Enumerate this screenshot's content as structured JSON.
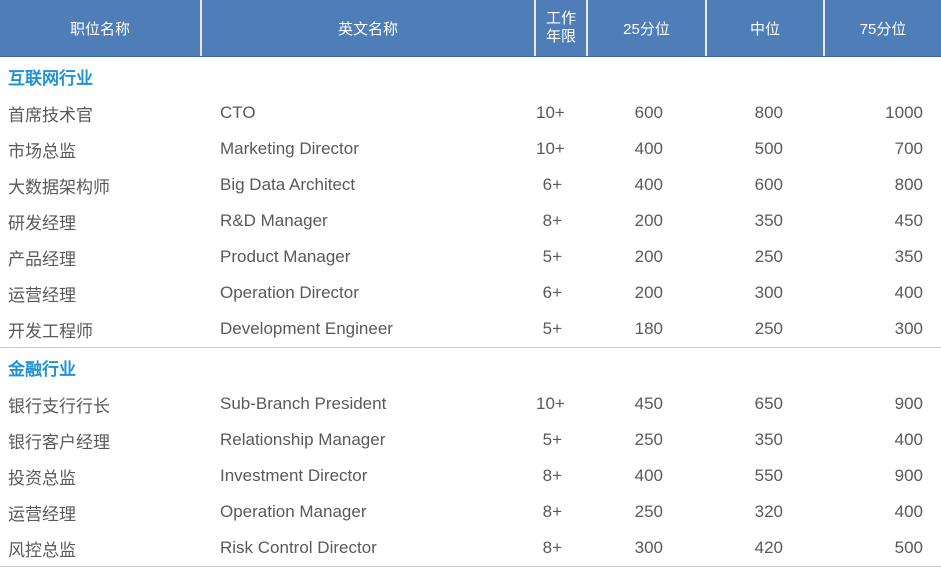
{
  "table": {
    "columns": [
      {
        "label": "职位名称"
      },
      {
        "label": "英文名称"
      },
      {
        "label_lines": [
          "工作",
          "年限"
        ]
      },
      {
        "label": "25分位"
      },
      {
        "label": "中位"
      },
      {
        "label": "75分位"
      }
    ],
    "sections": [
      {
        "name": "互联网行业",
        "rows": [
          [
            "首席技术官",
            "CTO",
            "10+",
            "600",
            "800",
            "1000"
          ],
          [
            "市场总监",
            "Marketing Director",
            "10+",
            "400",
            "500",
            "700"
          ],
          [
            "大数据架构师",
            "Big Data Architect",
            "6+",
            "400",
            "600",
            "800"
          ],
          [
            "研发经理",
            "R&D Manager",
            "8+",
            "200",
            "350",
            "450"
          ],
          [
            "产品经理",
            "Product Manager",
            "5+",
            "200",
            "250",
            "350"
          ],
          [
            "运营经理",
            "Operation Director",
            "6+",
            "200",
            "300",
            "400"
          ],
          [
            "开发工程师",
            "Development Engineer",
            "5+",
            "180",
            "250",
            "300"
          ]
        ]
      },
      {
        "name": "金融行业",
        "rows": [
          [
            "银行支行行长",
            "Sub-Branch President",
            "10+",
            "450",
            "650",
            "900"
          ],
          [
            "银行客户经理",
            "Relationship Manager",
            "5+",
            "250",
            "350",
            "400"
          ],
          [
            "投资总监",
            "Investment Director",
            "8+",
            "400",
            "550",
            "900"
          ],
          [
            "运营经理",
            "Operation Manager",
            "8+",
            "250",
            "320",
            "400"
          ],
          [
            "风控总监",
            "Risk Control Director",
            "8+",
            "300",
            "420",
            "500"
          ]
        ]
      }
    ],
    "colors": {
      "header_bg": "#4e7db8",
      "header_text": "#ffffff",
      "section_title_text": "#2093d5",
      "body_text": "#595959",
      "divider": "#cccccc"
    }
  }
}
